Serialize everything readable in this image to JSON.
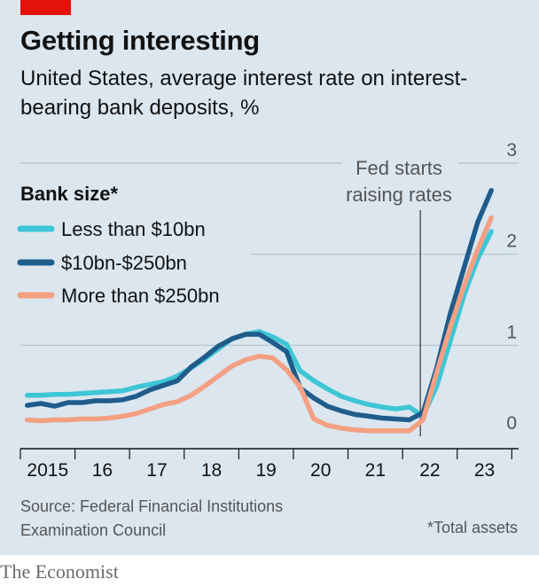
{
  "header": {
    "title": "Getting interesting",
    "subtitle": "United States, average interest rate on interest-bearing bank deposits, %"
  },
  "legend": {
    "title": "Bank size*",
    "items": [
      {
        "label": "Less than $10bn",
        "color": "#3ec6d6"
      },
      {
        "label": "$10bn-$250bn",
        "color": "#1f5c8b"
      },
      {
        "label": "More than $250bn",
        "color": "#f4a083"
      }
    ]
  },
  "annotation": {
    "line1": "Fed starts",
    "line2": "raising rates"
  },
  "footer": {
    "source": "Source: Federal Financial Institutions Examination Council",
    "footnote": "*Total assets",
    "brand": "The Economist"
  },
  "colors": {
    "background": "#dbe6ef",
    "accent": "#e3120b"
  },
  "chart_data": {
    "type": "line",
    "x_ticks": [
      "2015",
      "16",
      "17",
      "18",
      "19",
      "20",
      "21",
      "22",
      "23"
    ],
    "y_ticks": [
      "0",
      "1",
      "2",
      "3"
    ],
    "ylim": [
      0,
      3
    ],
    "xlim": [
      2014.875,
      2024.0
    ],
    "grid": "horizontal",
    "y_axis_side": "right",
    "legend_position": "top-left",
    "annotation": {
      "text": "Fed starts raising rates",
      "x": 2022.2
    },
    "series": [
      {
        "name": "Less than $10bn",
        "color": "#3ec6d6",
        "x": [
          2015.0,
          2015.25,
          2015.5,
          2015.75,
          2016.0,
          2016.25,
          2016.5,
          2016.75,
          2017.0,
          2017.25,
          2017.5,
          2017.75,
          2018.0,
          2018.25,
          2018.5,
          2018.75,
          2019.0,
          2019.25,
          2019.5,
          2019.75,
          2020.0,
          2020.25,
          2020.5,
          2020.75,
          2021.0,
          2021.25,
          2021.5,
          2021.75,
          2022.0,
          2022.25,
          2022.5,
          2022.75,
          2023.0,
          2023.25,
          2023.5
        ],
        "values": [
          0.45,
          0.45,
          0.46,
          0.46,
          0.47,
          0.48,
          0.49,
          0.5,
          0.54,
          0.57,
          0.6,
          0.66,
          0.75,
          0.85,
          0.96,
          1.07,
          1.12,
          1.15,
          1.09,
          1.01,
          0.72,
          0.61,
          0.52,
          0.44,
          0.39,
          0.35,
          0.32,
          0.3,
          0.32,
          0.22,
          0.55,
          1.05,
          1.55,
          1.95,
          2.25
        ]
      },
      {
        "name": "$10bn-$250bn",
        "color": "#1f5c8b",
        "x": [
          2015.0,
          2015.25,
          2015.5,
          2015.75,
          2016.0,
          2016.25,
          2016.5,
          2016.75,
          2017.0,
          2017.25,
          2017.5,
          2017.75,
          2018.0,
          2018.25,
          2018.5,
          2018.75,
          2019.0,
          2019.25,
          2019.5,
          2019.75,
          2020.0,
          2020.25,
          2020.5,
          2020.75,
          2021.0,
          2021.25,
          2021.5,
          2021.75,
          2022.0,
          2022.25,
          2022.5,
          2022.75,
          2023.0,
          2023.25,
          2023.5
        ],
        "values": [
          0.34,
          0.36,
          0.33,
          0.37,
          0.37,
          0.39,
          0.39,
          0.4,
          0.44,
          0.51,
          0.56,
          0.61,
          0.76,
          0.87,
          0.99,
          1.07,
          1.12,
          1.12,
          1.03,
          0.93,
          0.53,
          0.42,
          0.33,
          0.28,
          0.24,
          0.22,
          0.2,
          0.19,
          0.18,
          0.26,
          0.75,
          1.35,
          1.85,
          2.35,
          2.7
        ]
      },
      {
        "name": "More than $250bn",
        "color": "#f4a083",
        "x": [
          2015.0,
          2015.25,
          2015.5,
          2015.75,
          2016.0,
          2016.25,
          2016.5,
          2016.75,
          2017.0,
          2017.25,
          2017.5,
          2017.75,
          2018.0,
          2018.25,
          2018.5,
          2018.75,
          2019.0,
          2019.25,
          2019.5,
          2019.75,
          2020.0,
          2020.25,
          2020.5,
          2020.75,
          2021.0,
          2021.25,
          2021.5,
          2021.75,
          2022.0,
          2022.25,
          2022.5,
          2022.75,
          2023.0,
          2023.25,
          2023.5
        ],
        "values": [
          0.18,
          0.17,
          0.18,
          0.18,
          0.19,
          0.19,
          0.2,
          0.22,
          0.25,
          0.3,
          0.35,
          0.38,
          0.45,
          0.55,
          0.66,
          0.77,
          0.84,
          0.88,
          0.86,
          0.73,
          0.54,
          0.19,
          0.12,
          0.09,
          0.07,
          0.06,
          0.06,
          0.06,
          0.06,
          0.18,
          0.7,
          1.2,
          1.65,
          2.05,
          2.4
        ]
      }
    ]
  }
}
